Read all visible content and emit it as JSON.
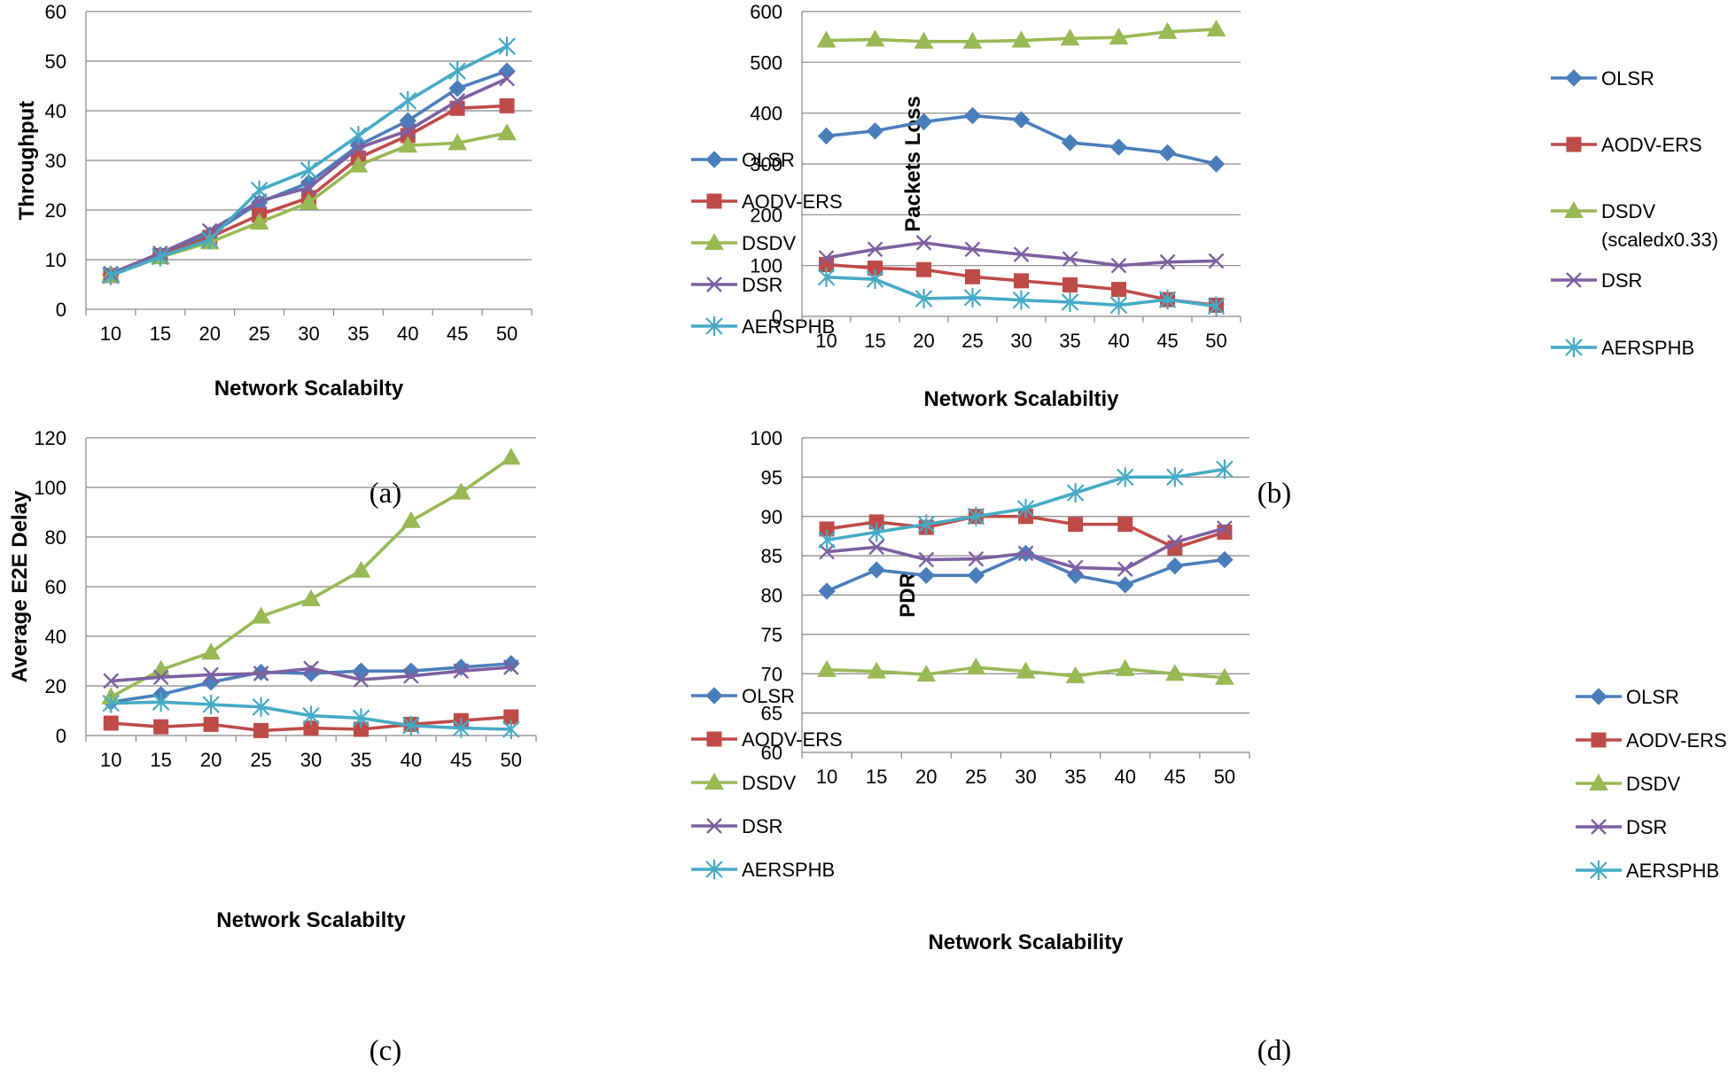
{
  "colors": {
    "OLSR": "#4A7EBB",
    "AODV-ERS": "#BE4B48",
    "DSDV": "#98B954",
    "DSR": "#7D60A0",
    "AERSPHB": "#46AAC5",
    "grid": "#868686"
  },
  "chart_data": [
    {
      "type": "line",
      "caption": "(a)",
      "title": "",
      "xlabel": "Network Scalabilty",
      "ylabel": "Throughput",
      "ylim": [
        0,
        60
      ],
      "yticks": [
        "0",
        "10",
        "20",
        "30",
        "40",
        "50",
        "60"
      ],
      "categories": [
        "10",
        "15",
        "20",
        "25",
        "30",
        "35",
        "40",
        "45",
        "50"
      ],
      "series": [
        {
          "name": "OLSR",
          "marker": "diamond",
          "values": [
            7.0,
            11.0,
            15.0,
            21.5,
            25.5,
            33.0,
            38.0,
            44.5,
            48.0
          ]
        },
        {
          "name": "AODV-ERS",
          "marker": "square",
          "values": [
            6.8,
            10.8,
            14.5,
            19.0,
            22.5,
            30.5,
            35.0,
            40.5,
            41.0
          ]
        },
        {
          "name": "DSDV",
          "marker": "triangle",
          "values": [
            6.8,
            10.5,
            13.5,
            17.5,
            21.5,
            29.0,
            33.0,
            33.5,
            35.5
          ]
        },
        {
          "name": "DSR",
          "marker": "x",
          "values": [
            7.2,
            11.3,
            15.8,
            21.8,
            24.5,
            32.5,
            36.0,
            42.0,
            46.5
          ]
        },
        {
          "name": "AERSPHB",
          "marker": "star",
          "values": [
            6.8,
            10.6,
            14.0,
            24.0,
            28.0,
            35.0,
            42.0,
            48.0,
            53.0
          ]
        }
      ]
    },
    {
      "type": "line",
      "caption": "(b)",
      "title": "",
      "xlabel": "Network Scalabiltiy",
      "ylabel": "Packets Loss",
      "ylim": [
        0,
        600
      ],
      "yticks": [
        "0",
        "100",
        "200",
        "300",
        "400",
        "500",
        "600"
      ],
      "categories": [
        "10",
        "15",
        "20",
        "25",
        "30",
        "35",
        "40",
        "45",
        "50"
      ],
      "series": [
        {
          "name": "OLSR",
          "marker": "diamond",
          "values": [
            355,
            365,
            383,
            395,
            387,
            342,
            333,
            322,
            300
          ]
        },
        {
          "name": "AODV-ERS",
          "marker": "square",
          "values": [
            102,
            95,
            92,
            78,
            70,
            62,
            53,
            33,
            22
          ]
        },
        {
          "name": "DSDV",
          "legend_note": "(scaledx0.33)",
          "marker": "triangle",
          "values": [
            543,
            545,
            541,
            541,
            543,
            547,
            549,
            560,
            565
          ]
        },
        {
          "name": "DSR",
          "marker": "x",
          "values": [
            115,
            132,
            145,
            132,
            122,
            113,
            100,
            107,
            109
          ]
        },
        {
          "name": "AERSPHB",
          "marker": "star",
          "values": [
            77,
            73,
            35,
            37,
            32,
            28,
            22,
            33,
            20
          ]
        }
      ]
    },
    {
      "type": "line",
      "caption": "(c)",
      "title": "",
      "xlabel": "Network Scalabilty",
      "ylabel": "Average E2E Delay",
      "ylim": [
        0,
        120
      ],
      "yticks": [
        "0",
        "20",
        "40",
        "60",
        "80",
        "100",
        "120"
      ],
      "categories": [
        "10",
        "15",
        "20",
        "25",
        "30",
        "35",
        "40",
        "45",
        "50"
      ],
      "series": [
        {
          "name": "OLSR",
          "marker": "diamond",
          "values": [
            13.5,
            16.5,
            21.5,
            25.5,
            25.0,
            26.0,
            26.0,
            27.5,
            29.0
          ]
        },
        {
          "name": "AODV-ERS",
          "marker": "square",
          "values": [
            5.0,
            3.5,
            4.5,
            2.0,
            3.0,
            2.5,
            4.5,
            6.0,
            7.5
          ]
        },
        {
          "name": "DSDV",
          "marker": "triangle",
          "values": [
            15.5,
            26.5,
            33.5,
            48.0,
            55.0,
            66.5,
            86.5,
            98.0,
            112.0
          ]
        },
        {
          "name": "DSR",
          "marker": "x",
          "values": [
            22.0,
            23.5,
            24.5,
            25.0,
            27.0,
            22.5,
            24.0,
            26.0,
            27.5
          ]
        },
        {
          "name": "AERSPHB",
          "marker": "star",
          "values": [
            13.0,
            13.5,
            12.5,
            11.5,
            8.0,
            7.0,
            4.0,
            3.0,
            2.5
          ]
        }
      ]
    },
    {
      "type": "line",
      "caption": "(d)",
      "title": "",
      "xlabel": "Network Scalability",
      "ylabel": "PDR",
      "ylim": [
        60,
        100
      ],
      "yticks": [
        "60",
        "65",
        "70",
        "75",
        "80",
        "85",
        "90",
        "95",
        "100"
      ],
      "categories": [
        "10",
        "15",
        "20",
        "25",
        "30",
        "35",
        "40",
        "45",
        "50"
      ],
      "series": [
        {
          "name": "OLSR",
          "marker": "diamond",
          "values": [
            80.5,
            83.2,
            82.5,
            82.5,
            85.3,
            82.5,
            81.3,
            83.7,
            84.5
          ]
        },
        {
          "name": "AODV-ERS",
          "marker": "square",
          "values": [
            88.4,
            89.3,
            88.6,
            90.0,
            90.0,
            89.0,
            89.0,
            86.0,
            88.0
          ]
        },
        {
          "name": "DSDV",
          "marker": "triangle",
          "values": [
            70.5,
            70.3,
            69.9,
            70.8,
            70.3,
            69.7,
            70.6,
            70.0,
            69.5
          ]
        },
        {
          "name": "DSR",
          "marker": "x",
          "values": [
            85.5,
            86.1,
            84.5,
            84.6,
            85.3,
            83.5,
            83.3,
            86.7,
            88.5
          ]
        },
        {
          "name": "AERSPHB",
          "marker": "star",
          "values": [
            87.0,
            88.0,
            89.0,
            90.0,
            91.0,
            93.0,
            95.0,
            95.0,
            96.0
          ]
        }
      ]
    }
  ]
}
